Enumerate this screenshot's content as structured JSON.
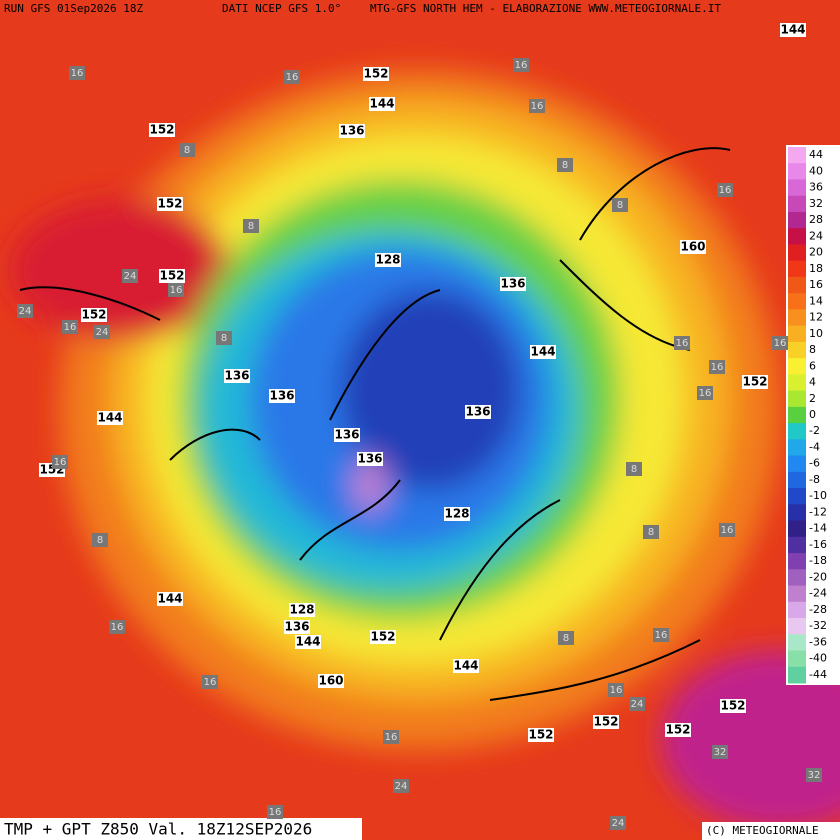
{
  "header": {
    "run": "RUN GFS 01Sep2026 18Z",
    "source": "DATI NCEP GFS 1.0°",
    "site": "MTG-GFS NORTH HEM - ELABORAZIONE WWW.METEOGIORNALE.IT"
  },
  "footer": {
    "title": "TMP + GPT Z850 Val. 18Z12SEP2026",
    "copyright": "(C) METEOGIORNALE"
  },
  "legend": {
    "values": [
      44,
      40,
      36,
      32,
      28,
      24,
      20,
      18,
      16,
      14,
      12,
      10,
      8,
      6,
      4,
      2,
      0,
      -2,
      -4,
      -6,
      -8,
      -10,
      -12,
      -14,
      -16,
      -18,
      -20,
      -24,
      -28,
      -32,
      -36,
      -40,
      -44
    ],
    "colors": [
      "#f4a8f0",
      "#e888e8",
      "#d868d8",
      "#c848b8",
      "#b02890",
      "#c81048",
      "#e02020",
      "#f03818",
      "#f05818",
      "#f87018",
      "#f89020",
      "#f8b020",
      "#f8d028",
      "#f8f030",
      "#d8f030",
      "#a8e830",
      "#58d040",
      "#20c8c8",
      "#20a8e8",
      "#2088f0",
      "#2068e0",
      "#2048c8",
      "#2830a8",
      "#302088",
      "#5030a0",
      "#8040b0",
      "#a060c0",
      "#c080d0",
      "#d8a8e8",
      "#e8c8f0",
      "#a8e8c8",
      "#88e0a8",
      "#60d0a0"
    ]
  },
  "gpt_labels": [
    144,
    152,
    144,
    152,
    136,
    152,
    128,
    152,
    136,
    152,
    144,
    136,
    152,
    136,
    136,
    144,
    136,
    136,
    152,
    128,
    144,
    128,
    136,
    144,
    152,
    144,
    160,
    160,
    152,
    152,
    152,
    152
  ],
  "tmp_labels": [
    16,
    16,
    16,
    16,
    8,
    8,
    16,
    8,
    8,
    24,
    16,
    24,
    16,
    24,
    8,
    16,
    16,
    16,
    16,
    8,
    16,
    8,
    16,
    8,
    16,
    16,
    8,
    16,
    16,
    24,
    16,
    24,
    24,
    16,
    32,
    32
  ]
}
